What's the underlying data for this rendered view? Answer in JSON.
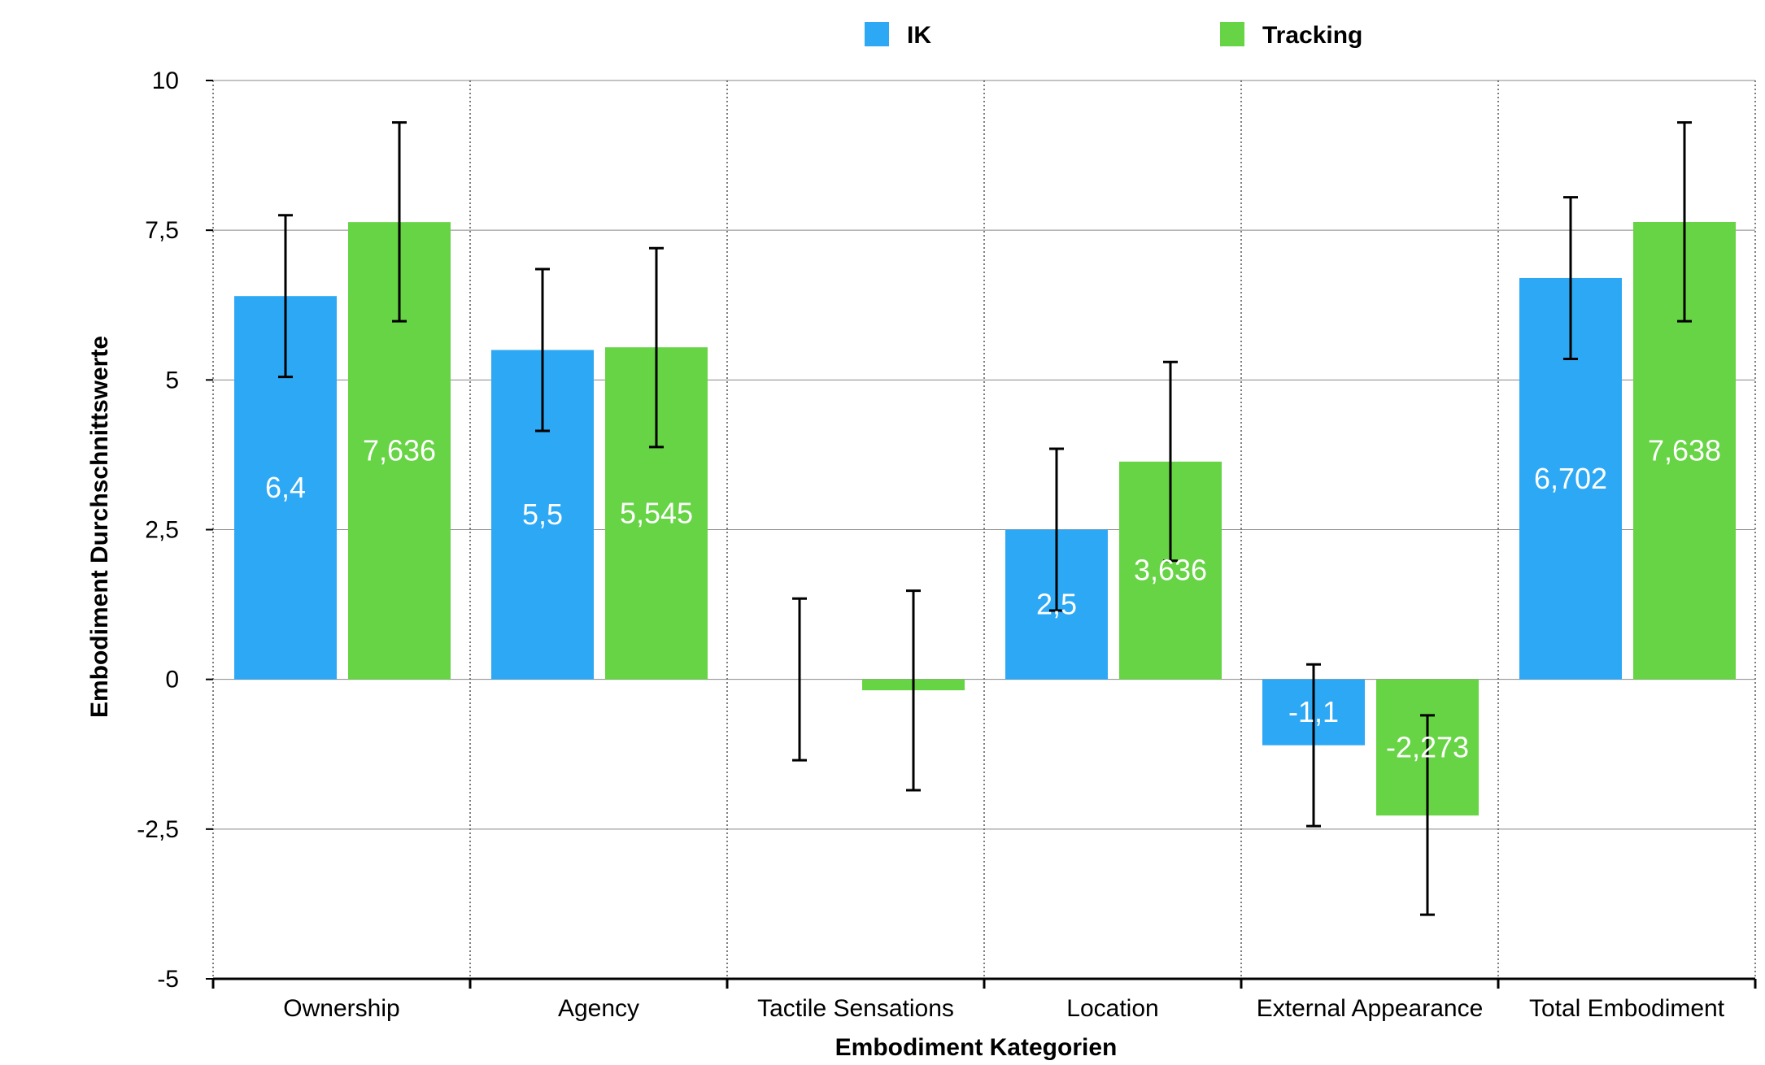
{
  "chart_data": {
    "type": "bar",
    "xlabel": "Embodiment Kategorien",
    "ylabel": "Embodiment Durchschnittswerte",
    "ylim": [
      -5,
      10
    ],
    "yticks": [
      10,
      7.5,
      5,
      2.5,
      0,
      -2.5,
      -5
    ],
    "ytick_labels": [
      "10",
      "7,5",
      "5",
      "2,5",
      "0",
      "-2,5",
      "-5"
    ],
    "categories": [
      "Ownership",
      "Agency",
      "Tactile Sensations",
      "Location",
      "External Appearance",
      "Total Embodiment"
    ],
    "legend_position": "top",
    "grid": true,
    "series": [
      {
        "name": "IK",
        "color": "#2DA8F5",
        "values": [
          6.4,
          5.5,
          0,
          2.5,
          -1.1,
          6.702
        ],
        "labels": [
          "6,4",
          "5,5",
          "",
          "2,5",
          "-1,1",
          "6,702"
        ],
        "error_low": [
          5.05,
          4.15,
          -1.35,
          1.15,
          -2.45,
          5.35
        ],
        "error_high": [
          7.75,
          6.85,
          1.35,
          3.85,
          0.25,
          8.05
        ]
      },
      {
        "name": "Tracking",
        "color": "#66D444",
        "values": [
          7.636,
          5.545,
          -0.182,
          3.636,
          -2.273,
          7.638
        ],
        "labels": [
          "7,636",
          "5,545",
          "",
          "3,636",
          "-2,273",
          "7,638"
        ],
        "error_low": [
          5.98,
          3.88,
          -1.85,
          1.98,
          -3.93,
          5.98
        ],
        "error_high": [
          9.3,
          7.2,
          1.48,
          5.3,
          -0.6,
          9.3
        ]
      }
    ]
  }
}
